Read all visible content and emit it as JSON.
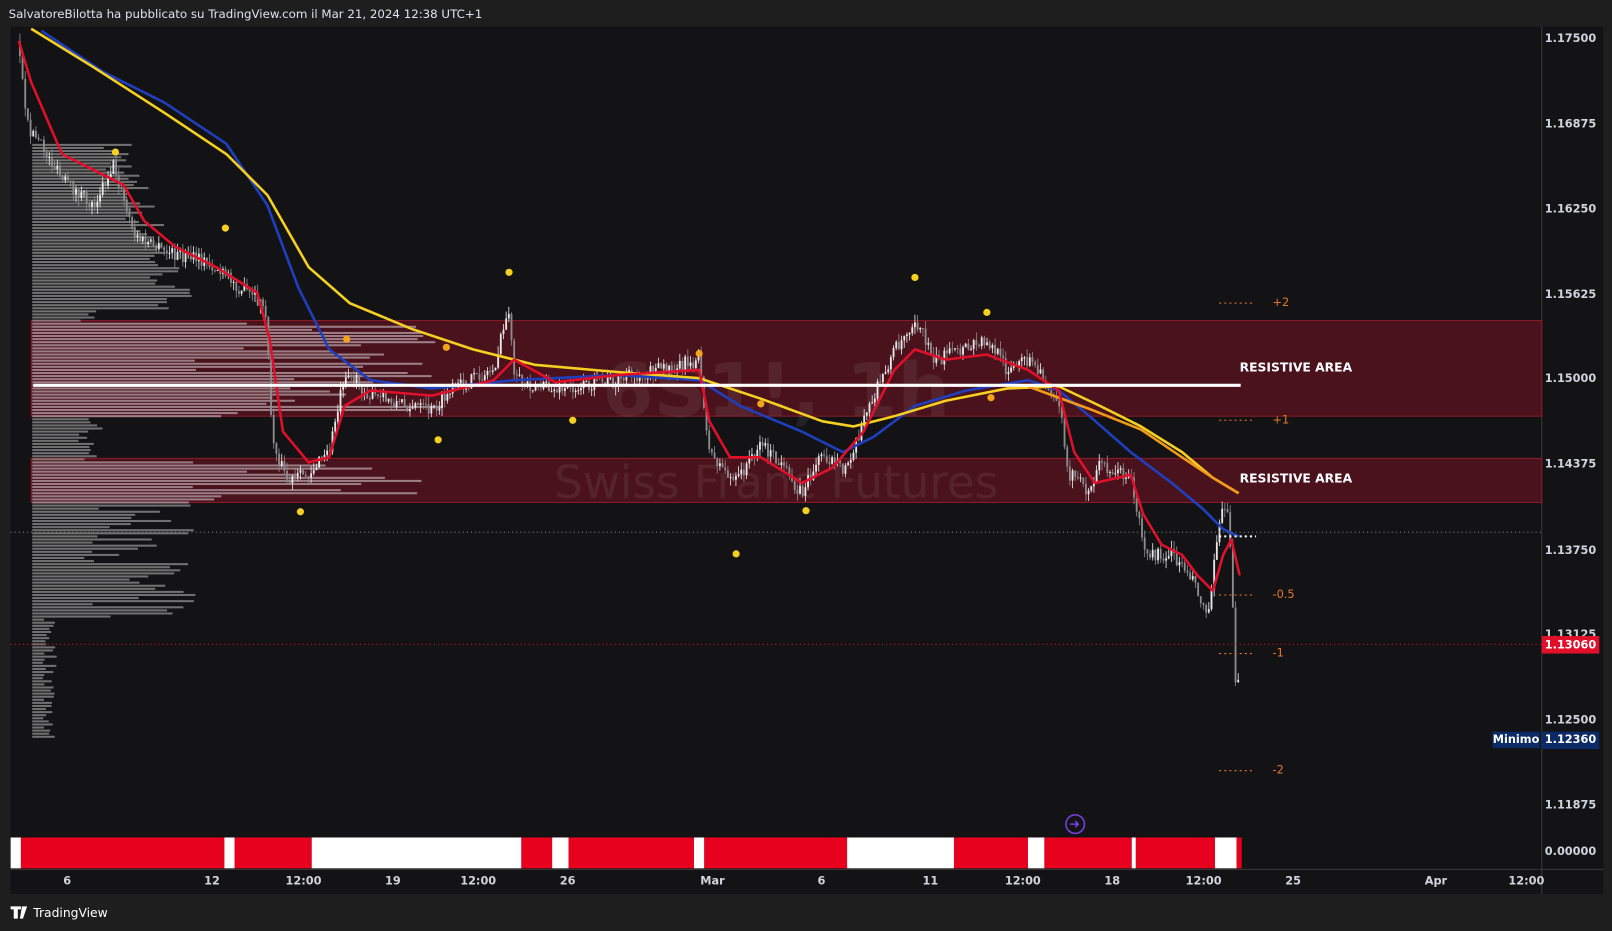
{
  "header": {
    "text": "SalvatoreBilotta ha pubblicato su TradingView.com il Mar 21, 2024 12:38 UTC+1"
  },
  "watermark": {
    "symbol": "6S1!, 1h",
    "name": "Swiss Franc Futures"
  },
  "price_axis": {
    "labels": [
      "1.17500",
      "1.16875",
      "1.16250",
      "1.15625",
      "1.15000",
      "1.14375",
      "1.13750",
      "1.13125",
      "1.12500",
      "1.11875"
    ]
  },
  "price_tags": {
    "current": "1.13060",
    "minimum_label": "Minimo",
    "minimum": "1.12360"
  },
  "indicator_axis": {
    "label": "0.00000"
  },
  "time_axis": {
    "labels": [
      "6",
      "12",
      "12:00",
      "19",
      "12:00",
      "26",
      "Mar",
      "6",
      "11",
      "12:00",
      "18",
      "12:00",
      "25",
      "Apr",
      "12:00"
    ]
  },
  "annotations": [
    "RESISTIVE AREA",
    "RESISTIVE AREA"
  ],
  "fib_levels": [
    "+2",
    "+1",
    "-0.5",
    "-1",
    "-2"
  ],
  "footer": {
    "brand": "TradingView"
  }
}
